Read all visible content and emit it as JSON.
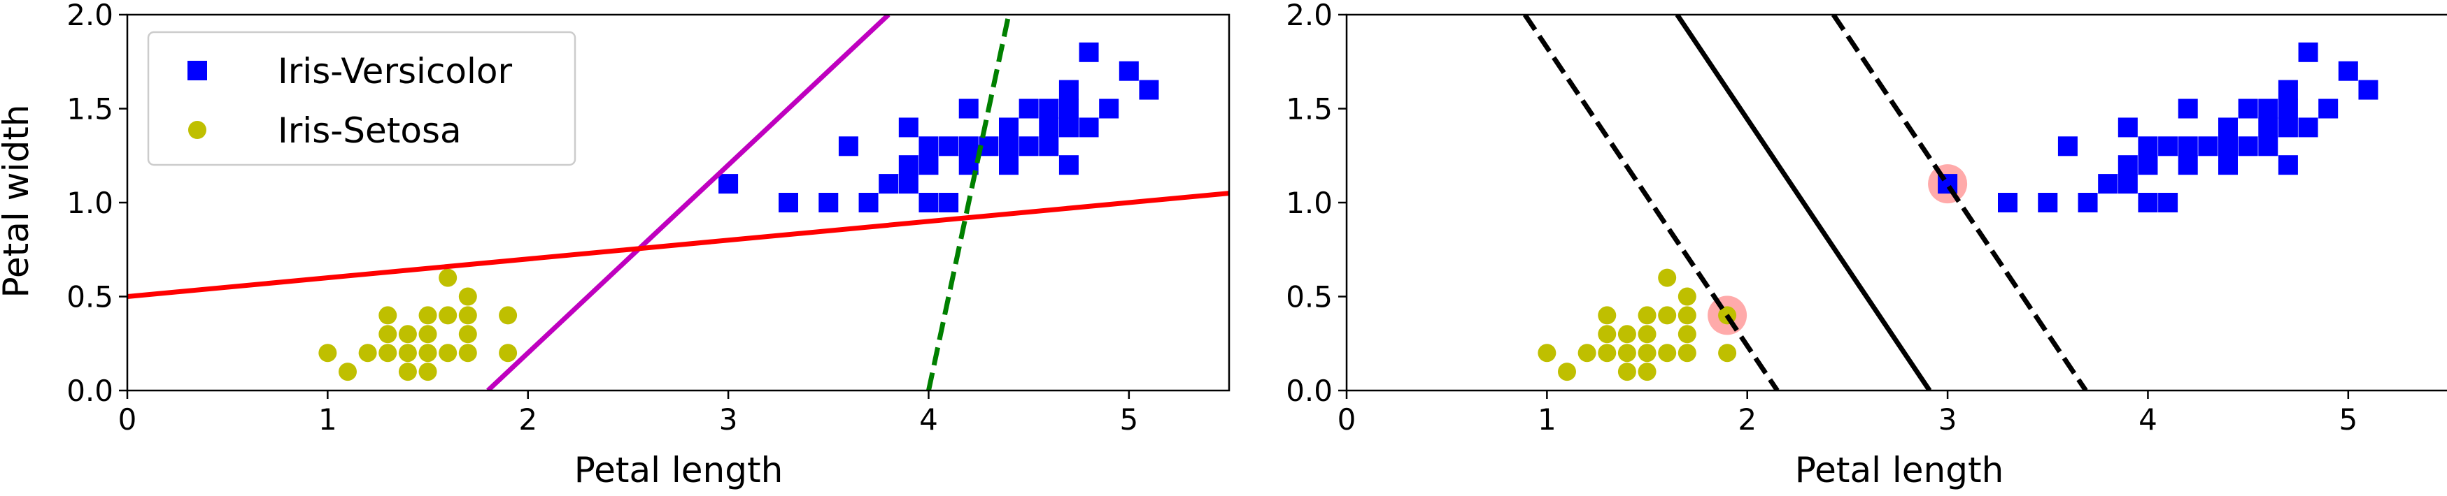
{
  "chart_data": [
    {
      "type": "scatter",
      "title": "",
      "xlabel": "Petal length",
      "ylabel": "Petal width",
      "xlim": [
        0,
        5.5
      ],
      "ylim": [
        0,
        2.0
      ],
      "xticks": [
        "0",
        "1",
        "2",
        "3",
        "4",
        "5"
      ],
      "yticks": [
        "0.0",
        "0.5",
        "1.0",
        "1.5",
        "2.0"
      ],
      "grid": false,
      "legend": {
        "position": "top-left",
        "entries": [
          "Iris-Versicolor",
          "Iris-Setosa"
        ]
      },
      "series": [
        {
          "name": "Iris-Versicolor",
          "marker": "square",
          "color": "#0000ff",
          "points": [
            [
              3.0,
              1.1
            ],
            [
              3.3,
              1.0
            ],
            [
              3.5,
              1.0
            ],
            [
              3.6,
              1.3
            ],
            [
              3.7,
              1.0
            ],
            [
              3.8,
              1.1
            ],
            [
              3.9,
              1.1
            ],
            [
              3.9,
              1.2
            ],
            [
              3.9,
              1.4
            ],
            [
              4.0,
              1.0
            ],
            [
              4.0,
              1.2
            ],
            [
              4.0,
              1.3
            ],
            [
              4.1,
              1.0
            ],
            [
              4.1,
              1.3
            ],
            [
              4.2,
              1.2
            ],
            [
              4.2,
              1.3
            ],
            [
              4.2,
              1.5
            ],
            [
              4.3,
              1.3
            ],
            [
              4.4,
              1.2
            ],
            [
              4.4,
              1.3
            ],
            [
              4.4,
              1.4
            ],
            [
              4.5,
              1.3
            ],
            [
              4.5,
              1.5
            ],
            [
              4.6,
              1.3
            ],
            [
              4.6,
              1.4
            ],
            [
              4.6,
              1.5
            ],
            [
              4.7,
              1.2
            ],
            [
              4.7,
              1.4
            ],
            [
              4.7,
              1.5
            ],
            [
              4.7,
              1.6
            ],
            [
              4.8,
              1.4
            ],
            [
              4.8,
              1.8
            ],
            [
              4.9,
              1.5
            ],
            [
              5.0,
              1.7
            ],
            [
              5.1,
              1.6
            ]
          ]
        },
        {
          "name": "Iris-Setosa",
          "marker": "circle",
          "color": "#bfbf00",
          "points": [
            [
              1.0,
              0.2
            ],
            [
              1.1,
              0.1
            ],
            [
              1.2,
              0.2
            ],
            [
              1.3,
              0.2
            ],
            [
              1.3,
              0.3
            ],
            [
              1.3,
              0.4
            ],
            [
              1.4,
              0.1
            ],
            [
              1.4,
              0.2
            ],
            [
              1.4,
              0.3
            ],
            [
              1.5,
              0.1
            ],
            [
              1.5,
              0.2
            ],
            [
              1.5,
              0.3
            ],
            [
              1.5,
              0.4
            ],
            [
              1.6,
              0.2
            ],
            [
              1.6,
              0.4
            ],
            [
              1.6,
              0.6
            ],
            [
              1.7,
              0.2
            ],
            [
              1.7,
              0.3
            ],
            [
              1.7,
              0.4
            ],
            [
              1.7,
              0.5
            ],
            [
              1.9,
              0.2
            ],
            [
              1.9,
              0.4
            ]
          ]
        }
      ],
      "lines": [
        {
          "style": "dashed",
          "color": "#008000",
          "points": [
            [
              4.0,
              0.0
            ],
            [
              4.4,
              2.0
            ]
          ]
        },
        {
          "style": "solid",
          "color": "#bf00bf",
          "points": [
            [
              1.8,
              0.0
            ],
            [
              3.8,
              2.0
            ]
          ]
        },
        {
          "style": "solid",
          "color": "#ff0000",
          "points": [
            [
              0.0,
              0.5
            ],
            [
              5.5,
              1.05
            ]
          ]
        }
      ]
    },
    {
      "type": "scatter",
      "title": "",
      "xlabel": "Petal length",
      "ylabel": "",
      "xlim": [
        0,
        5.5
      ],
      "ylim": [
        0,
        2.0
      ],
      "xticks": [
        "0",
        "1",
        "2",
        "3",
        "4",
        "5"
      ],
      "yticks": [
        "0.0",
        "0.5",
        "1.0",
        "1.5",
        "2.0"
      ],
      "grid": false,
      "series": [
        {
          "name": "",
          "marker": "square",
          "color": "#0000ff",
          "points": [
            [
              3.0,
              1.1
            ],
            [
              3.3,
              1.0
            ],
            [
              3.5,
              1.0
            ],
            [
              3.6,
              1.3
            ],
            [
              3.7,
              1.0
            ],
            [
              3.8,
              1.1
            ],
            [
              3.9,
              1.1
            ],
            [
              3.9,
              1.2
            ],
            [
              3.9,
              1.4
            ],
            [
              4.0,
              1.0
            ],
            [
              4.0,
              1.2
            ],
            [
              4.0,
              1.3
            ],
            [
              4.1,
              1.0
            ],
            [
              4.1,
              1.3
            ],
            [
              4.2,
              1.2
            ],
            [
              4.2,
              1.3
            ],
            [
              4.2,
              1.5
            ],
            [
              4.3,
              1.3
            ],
            [
              4.4,
              1.2
            ],
            [
              4.4,
              1.3
            ],
            [
              4.4,
              1.4
            ],
            [
              4.5,
              1.3
            ],
            [
              4.5,
              1.5
            ],
            [
              4.6,
              1.3
            ],
            [
              4.6,
              1.4
            ],
            [
              4.6,
              1.5
            ],
            [
              4.7,
              1.2
            ],
            [
              4.7,
              1.4
            ],
            [
              4.7,
              1.5
            ],
            [
              4.7,
              1.6
            ],
            [
              4.8,
              1.4
            ],
            [
              4.8,
              1.8
            ],
            [
              4.9,
              1.5
            ],
            [
              5.0,
              1.7
            ],
            [
              5.1,
              1.6
            ]
          ]
        },
        {
          "name": "",
          "marker": "circle",
          "color": "#bfbf00",
          "points": [
            [
              1.0,
              0.2
            ],
            [
              1.1,
              0.1
            ],
            [
              1.2,
              0.2
            ],
            [
              1.3,
              0.2
            ],
            [
              1.3,
              0.3
            ],
            [
              1.3,
              0.4
            ],
            [
              1.4,
              0.1
            ],
            [
              1.4,
              0.2
            ],
            [
              1.4,
              0.3
            ],
            [
              1.5,
              0.1
            ],
            [
              1.5,
              0.2
            ],
            [
              1.5,
              0.3
            ],
            [
              1.5,
              0.4
            ],
            [
              1.6,
              0.2
            ],
            [
              1.6,
              0.4
            ],
            [
              1.6,
              0.6
            ],
            [
              1.7,
              0.2
            ],
            [
              1.7,
              0.3
            ],
            [
              1.7,
              0.4
            ],
            [
              1.7,
              0.5
            ],
            [
              1.9,
              0.2
            ],
            [
              1.9,
              0.4
            ]
          ]
        }
      ],
      "support_vectors": {
        "color": "#ffaaaa",
        "points": [
          [
            1.9,
            0.4
          ],
          [
            3.0,
            1.1
          ]
        ]
      },
      "lines": [
        {
          "style": "solid",
          "color": "#000000",
          "points": [
            [
              1.65,
              2.0
            ],
            [
              2.91,
              0.0
            ]
          ]
        },
        {
          "style": "dashed",
          "color": "#000000",
          "points": [
            [
              0.89,
              2.0
            ],
            [
              2.15,
              0.0
            ]
          ]
        },
        {
          "style": "dashed",
          "color": "#000000",
          "points": [
            [
              2.43,
              2.0
            ],
            [
              3.69,
              0.0
            ]
          ]
        }
      ]
    }
  ]
}
